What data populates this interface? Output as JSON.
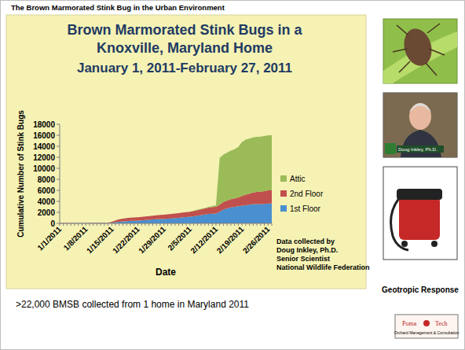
{
  "slide": {
    "title": "The Brown Marmorated Stink Bug in the Urban Environment",
    "caption": ">22,000 BMSB collected from 1 home in Maryland 2011",
    "image_caption": "Geotropic Response",
    "photo_caption": "Doug Inkley, Ph.D.",
    "logo": {
      "name_left": "Poma",
      "name_right": "Tech",
      "tagline": "Orchard Management & Consultation"
    }
  },
  "chart_data": {
    "type": "area",
    "stacked": true,
    "title": "Brown Marmorated Stink Bugs in a Knoxville, Maryland Home",
    "subtitle": "January 1, 2011-February 27, 2011",
    "x_label": "Date",
    "y_label": "Cumulative Number of Stink Bugs",
    "annotations": [
      "Data collected by",
      "Doug Inkley, Ph.D.",
      "Senior Scientist",
      "National Wildlife Federation"
    ],
    "legend": "right",
    "grid": false,
    "ylim": [
      0,
      18000
    ],
    "yticks": [
      0,
      2000,
      4000,
      6000,
      8000,
      10000,
      12000,
      14000,
      16000,
      18000
    ],
    "categories": [
      "1/1/2011",
      null,
      null,
      null,
      null,
      null,
      null,
      "1/8/2011",
      null,
      null,
      null,
      null,
      null,
      null,
      "1/15/2011",
      null,
      null,
      null,
      null,
      null,
      null,
      "1/22/2011",
      null,
      null,
      null,
      null,
      null,
      null,
      "1/29/2011",
      null,
      null,
      null,
      null,
      null,
      null,
      "2/5/2011",
      null,
      null,
      null,
      null,
      null,
      null,
      "2/12/2011",
      null,
      null,
      null,
      null,
      null,
      null,
      "2/19/2011",
      null,
      null,
      null,
      null,
      null,
      null,
      "2/26/2011",
      null
    ],
    "series": [
      {
        "name": "1st Floor",
        "color": "#4a8fcf",
        "values": [
          50,
          50,
          50,
          50,
          60,
          60,
          60,
          60,
          70,
          70,
          70,
          80,
          80,
          80,
          100,
          200,
          300,
          350,
          400,
          450,
          480,
          500,
          550,
          600,
          650,
          700,
          750,
          780,
          800,
          850,
          900,
          950,
          1000,
          1100,
          1150,
          1200,
          1300,
          1400,
          1500,
          1600,
          1700,
          1750,
          1800,
          2100,
          2500,
          2700,
          2900,
          3000,
          3100,
          3200,
          3300,
          3400,
          3500,
          3500,
          3500,
          3550,
          3600,
          3600
        ]
      },
      {
        "name": "2nd Floor",
        "color": "#c0504d",
        "values": [
          50,
          50,
          50,
          50,
          50,
          60,
          60,
          60,
          60,
          70,
          70,
          70,
          80,
          80,
          200,
          350,
          450,
          500,
          550,
          580,
          600,
          600,
          620,
          650,
          680,
          700,
          720,
          750,
          780,
          800,
          820,
          850,
          870,
          880,
          900,
          900,
          950,
          1000,
          1050,
          1100,
          1150,
          1200,
          1200,
          1300,
          1400,
          1450,
          1500,
          1550,
          1600,
          1800,
          1900,
          2000,
          2100,
          2200,
          2250,
          2300,
          2400,
          2400
        ]
      },
      {
        "name": "Attic",
        "color": "#9bbb59",
        "values": [
          0,
          0,
          0,
          0,
          0,
          0,
          0,
          0,
          0,
          0,
          0,
          0,
          0,
          0,
          0,
          0,
          0,
          0,
          0,
          0,
          0,
          0,
          0,
          0,
          0,
          0,
          0,
          0,
          0,
          0,
          0,
          0,
          0,
          0,
          0,
          50,
          50,
          100,
          100,
          100,
          150,
          200,
          300,
          8500,
          8600,
          8700,
          8800,
          8900,
          9200,
          9800,
          10000,
          10000,
          10000,
          10000,
          10000,
          10000,
          10000,
          10000
        ]
      }
    ]
  }
}
